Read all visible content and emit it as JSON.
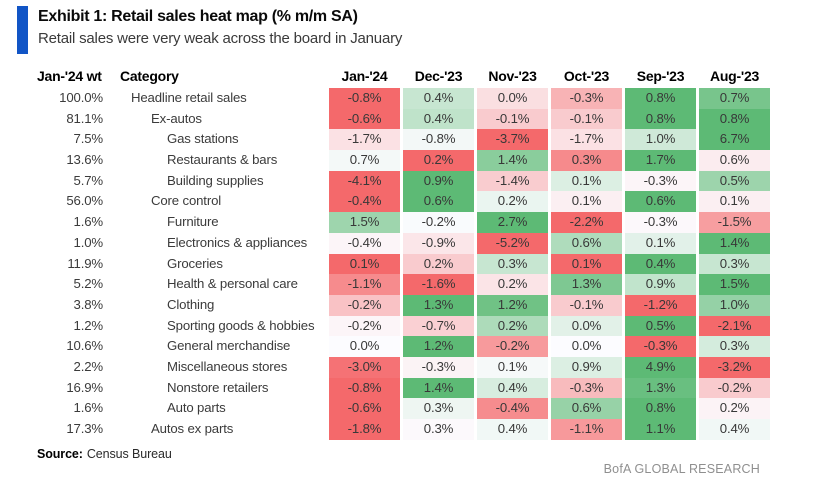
{
  "exhibit": {
    "title": "Exhibit 1: Retail sales heat map (% m/m SA)",
    "subtitle": "Retail sales were very weak across the board in January",
    "accent_color": "#1155c6"
  },
  "table_headers": {
    "weight": "Jan-'24 wt",
    "category": "Category"
  },
  "chart_data": {
    "type": "heatmap",
    "title": "Exhibit 1: Retail sales heat map (% m/m SA)",
    "subtitle": "Retail sales were very weak across the board in January",
    "value_unit": "% m/m SA",
    "columns": [
      "Jan-'24",
      "Dec-'23",
      "Nov-'23",
      "Oct-'23",
      "Sep-'23",
      "Aug-'23"
    ],
    "rows": [
      {
        "weight": "100.0%",
        "category": "Headline retail sales",
        "indent": 0,
        "values": [
          -0.8,
          0.4,
          0.0,
          -0.3,
          0.8,
          0.7
        ]
      },
      {
        "weight": "81.1%",
        "category": "Ex-autos",
        "indent": 1,
        "values": [
          -0.6,
          0.4,
          -0.1,
          -0.1,
          0.8,
          0.8
        ]
      },
      {
        "weight": "7.5%",
        "category": "Gas stations",
        "indent": 2,
        "values": [
          -1.7,
          -0.8,
          -3.7,
          -1.7,
          1.0,
          6.7
        ]
      },
      {
        "weight": "13.6%",
        "category": "Restaurants & bars",
        "indent": 2,
        "values": [
          0.7,
          0.2,
          1.4,
          0.3,
          1.7,
          0.6
        ]
      },
      {
        "weight": "5.7%",
        "category": "Building supplies",
        "indent": 2,
        "values": [
          -4.1,
          0.9,
          -1.4,
          0.1,
          -0.3,
          0.5
        ]
      },
      {
        "weight": "56.0%",
        "category": "Core control",
        "indent": 1,
        "values": [
          -0.4,
          0.6,
          0.2,
          0.1,
          0.6,
          0.1
        ]
      },
      {
        "weight": "1.6%",
        "category": "Furniture",
        "indent": 2,
        "values": [
          1.5,
          -0.2,
          2.7,
          -2.2,
          -0.3,
          -1.5
        ]
      },
      {
        "weight": "1.0%",
        "category": "Electronics & appliances",
        "indent": 2,
        "values": [
          -0.4,
          -0.9,
          -5.2,
          0.6,
          0.1,
          1.4
        ]
      },
      {
        "weight": "11.9%",
        "category": "Groceries",
        "indent": 2,
        "values": [
          0.1,
          0.2,
          0.3,
          0.1,
          0.4,
          0.3
        ]
      },
      {
        "weight": "5.2%",
        "category": "Health & personal care",
        "indent": 2,
        "values": [
          -1.1,
          -1.6,
          0.2,
          1.3,
          0.9,
          1.5
        ]
      },
      {
        "weight": "3.8%",
        "category": "Clothing",
        "indent": 2,
        "values": [
          -0.2,
          1.3,
          1.2,
          -0.1,
          -1.2,
          1.0
        ]
      },
      {
        "weight": "1.2%",
        "category": "Sporting goods & hobbies",
        "indent": 2,
        "values": [
          -0.2,
          -0.7,
          0.2,
          0.0,
          0.5,
          -2.1
        ]
      },
      {
        "weight": "10.6%",
        "category": "General merchandise",
        "indent": 2,
        "values": [
          0.0,
          1.2,
          -0.2,
          0.0,
          -0.3,
          0.3
        ]
      },
      {
        "weight": "2.2%",
        "category": "Miscellaneous stores",
        "indent": 2,
        "values": [
          -3.0,
          -0.3,
          0.1,
          0.9,
          4.9,
          -3.2
        ]
      },
      {
        "weight": "16.9%",
        "category": "Nonstore retailers",
        "indent": 2,
        "values": [
          -0.8,
          1.4,
          0.4,
          -0.3,
          1.3,
          -0.2
        ]
      },
      {
        "weight": "1.6%",
        "category": "Auto parts",
        "indent": 2,
        "values": [
          -0.6,
          0.3,
          -0.4,
          0.6,
          0.8,
          0.2
        ]
      },
      {
        "weight": "17.3%",
        "category": "Autos ex parts",
        "indent": 1,
        "values": [
          -1.8,
          0.3,
          0.4,
          -1.1,
          1.1,
          0.4
        ]
      }
    ],
    "color_scale": {
      "min_color": "#f4696b",
      "mid_color": "#fcfcff",
      "max_color": "#5dba75",
      "midpoint": "row median",
      "scope": "per-row"
    },
    "layout_hints": {
      "value_format": "one decimal place with % suffix",
      "grid": "off",
      "legend": "none"
    }
  },
  "footer": {
    "source_label": "Source:",
    "source_value": "Census Bureau",
    "branding": "BofA GLOBAL RESEARCH"
  }
}
